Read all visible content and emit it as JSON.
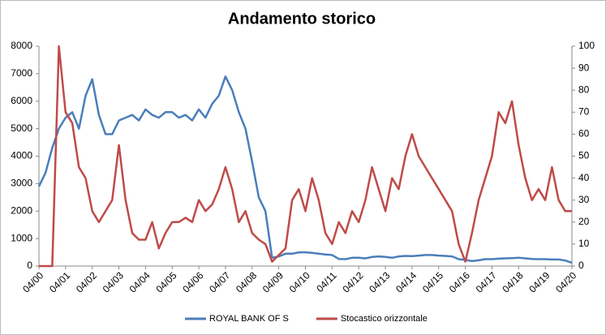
{
  "chart_data": {
    "type": "line",
    "title": "Andamento storico",
    "categories": [
      "04/00",
      null,
      null,
      null,
      "04/01",
      null,
      null,
      null,
      "04/02",
      null,
      null,
      null,
      "04/03",
      null,
      null,
      null,
      "04/04",
      null,
      null,
      null,
      "04/05",
      null,
      null,
      null,
      "04/06",
      null,
      null,
      null,
      "04/07",
      null,
      null,
      null,
      "04/08",
      null,
      null,
      null,
      "04/09",
      null,
      null,
      null,
      "04/10",
      null,
      null,
      null,
      "04/11",
      null,
      null,
      null,
      "04/12",
      null,
      null,
      null,
      "04/13",
      null,
      null,
      null,
      "04/14",
      null,
      null,
      null,
      "04/15",
      null,
      null,
      null,
      "04/16",
      null,
      null,
      null,
      "04/17",
      null,
      null,
      null,
      "04/18",
      null,
      null,
      null,
      "04/19",
      null,
      null,
      null,
      "04/20"
    ],
    "series": [
      {
        "name": "ROYAL BANK OF S",
        "color": "#4a7ebb",
        "axis": "y",
        "values": [
          2900,
          3400,
          4300,
          5000,
          5400,
          5600,
          5000,
          6200,
          6800,
          5500,
          4800,
          4800,
          5300,
          5400,
          5500,
          5300,
          5700,
          5500,
          5400,
          5600,
          5600,
          5400,
          5500,
          5300,
          5700,
          5400,
          5900,
          6200,
          6900,
          6400,
          5600,
          5000,
          3800,
          2500,
          2000,
          300,
          350,
          450,
          450,
          500,
          500,
          480,
          450,
          420,
          400,
          260,
          250,
          300,
          300,
          280,
          330,
          350,
          330,
          300,
          350,
          370,
          360,
          380,
          400,
          400,
          380,
          370,
          350,
          250,
          220,
          180,
          210,
          250,
          250,
          270,
          280,
          290,
          300,
          280,
          260,
          250,
          250,
          240,
          240,
          200,
          120
        ]
      },
      {
        "name": "Stocastico orizzontale",
        "color": "#be4b48",
        "axis": "y2",
        "values": [
          0,
          0,
          0,
          100,
          70,
          65,
          45,
          40,
          25,
          20,
          25,
          30,
          55,
          30,
          15,
          12,
          12,
          20,
          8,
          15,
          20,
          20,
          22,
          20,
          30,
          25,
          28,
          35,
          45,
          35,
          20,
          25,
          15,
          12,
          10,
          2,
          5,
          8,
          30,
          35,
          25,
          40,
          30,
          15,
          10,
          20,
          15,
          25,
          20,
          30,
          45,
          35,
          25,
          40,
          35,
          50,
          60,
          50,
          45,
          40,
          35,
          30,
          25,
          10,
          2,
          15,
          30,
          40,
          50,
          70,
          65,
          75,
          55,
          40,
          30,
          35,
          30,
          45,
          30,
          25,
          25
        ]
      }
    ],
    "ylim": [
      0,
      8000
    ],
    "yticks": [
      0,
      1000,
      2000,
      3000,
      4000,
      5000,
      6000,
      7000,
      8000
    ],
    "y2lim": [
      0,
      100
    ],
    "y2ticks": [
      0,
      10,
      20,
      30,
      40,
      50,
      60,
      70,
      80,
      90,
      100
    ],
    "legend": "bottom"
  }
}
